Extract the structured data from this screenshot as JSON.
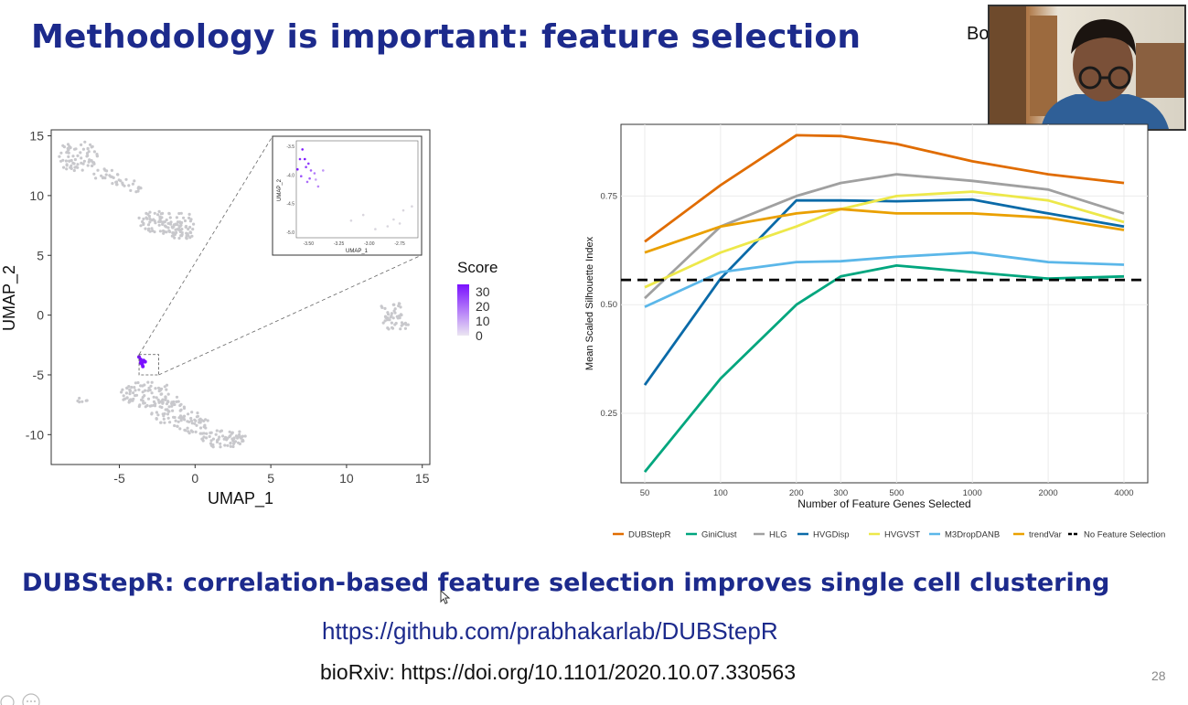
{
  "slide": {
    "title": "Methodology is important: feature selection",
    "presenter_label_fragment": "Bo",
    "subtitle": "DUBStepR: correlation-based feature selection improves single cell clustering",
    "link": "https://github.com/prabhakarlab/DUBStepR",
    "doi": "bioRxiv: https://doi.org/10.1101/2020.10.07.330563",
    "page_number": "28"
  },
  "chart_data": [
    {
      "type": "scatter",
      "xlabel": "UMAP_1",
      "ylabel": "UMAP_2",
      "xlim": [
        -9.5,
        15.5
      ],
      "ylim": [
        -12.5,
        15.5
      ],
      "x_ticks": [
        "-5",
        "0",
        "5",
        "10",
        "15"
      ],
      "y_ticks": [
        "15",
        "10",
        "5",
        "0",
        "-5",
        "-10"
      ],
      "legend": {
        "title": "Score",
        "labels": [
          "30",
          "20",
          "10",
          "0"
        ],
        "position": "right"
      },
      "colors": {
        "background_points": "#c8c8cc",
        "high_score": "#7a10ff",
        "low_score": "#ebe6f2"
      },
      "clusters": [
        {
          "cx": -7.8,
          "cy": 13.3,
          "rx": 1.4,
          "ry": 1.3,
          "n": 70
        },
        {
          "cx": -6.0,
          "cy": 11.8,
          "rx": 0.9,
          "ry": 0.5,
          "n": 18
        },
        {
          "cx": -4.8,
          "cy": 11.1,
          "rx": 1.0,
          "ry": 0.3,
          "n": 14
        },
        {
          "cx": -3.8,
          "cy": 10.6,
          "rx": 0.6,
          "ry": 0.3,
          "n": 8
        },
        {
          "cx": -2.5,
          "cy": 7.8,
          "rx": 1.4,
          "ry": 0.9,
          "n": 55
        },
        {
          "cx": -1.2,
          "cy": 7.6,
          "rx": 1.2,
          "ry": 1.2,
          "n": 50
        },
        {
          "cx": -0.6,
          "cy": 6.9,
          "rx": 0.7,
          "ry": 0.5,
          "n": 15
        },
        {
          "cx": -3.2,
          "cy": -6.5,
          "rx": 1.8,
          "ry": 1.2,
          "n": 80
        },
        {
          "cx": -1.8,
          "cy": -7.9,
          "rx": 1.2,
          "ry": 1.3,
          "n": 55
        },
        {
          "cx": -0.3,
          "cy": -9.0,
          "rx": 1.2,
          "ry": 0.9,
          "n": 45
        },
        {
          "cx": 1.8,
          "cy": -10.3,
          "rx": 1.7,
          "ry": 0.8,
          "n": 70
        },
        {
          "cx": 13.0,
          "cy": 0.4,
          "rx": 0.8,
          "ry": 0.8,
          "n": 28
        },
        {
          "cx": 13.3,
          "cy": -0.8,
          "rx": 0.9,
          "ry": 0.6,
          "n": 22
        },
        {
          "cx": -7.5,
          "cy": -7.1,
          "rx": 0.4,
          "ry": 0.2,
          "n": 6
        }
      ],
      "highlight_points": [
        [
          -3.6,
          -3.7
        ],
        [
          -3.5,
          -3.9
        ],
        [
          -3.4,
          -3.8
        ],
        [
          -3.6,
          -4.0
        ],
        [
          -3.5,
          -4.1
        ],
        [
          -3.7,
          -3.5
        ],
        [
          -3.3,
          -3.9
        ],
        [
          -3.45,
          -4.3
        ]
      ],
      "inset": {
        "xlabel": "UMAP_1",
        "ylabel": "UMAP_2",
        "x_ticks": [
          "-3.50",
          "-3.25",
          "-3.00",
          "-2.75"
        ],
        "y_ticks": [
          "-3.5",
          "-4.0",
          "-4.5",
          "-5.0"
        ],
        "xlim": [
          -3.6,
          -2.6
        ],
        "ylim": [
          -5.1,
          -3.4
        ],
        "points": [
          [
            -3.55,
            -3.55,
            30
          ],
          [
            -3.57,
            -3.72,
            28
          ],
          [
            -3.53,
            -3.72,
            32
          ],
          [
            -3.5,
            -3.8,
            26
          ],
          [
            -3.59,
            -3.9,
            30
          ],
          [
            -3.52,
            -3.86,
            24
          ],
          [
            -3.48,
            -3.92,
            20
          ],
          [
            -3.45,
            -3.97,
            16
          ],
          [
            -3.56,
            -4.02,
            22
          ],
          [
            -3.51,
            -4.12,
            18
          ],
          [
            -3.42,
            -4.2,
            14
          ],
          [
            -3.49,
            -4.06,
            20
          ],
          [
            -3.38,
            -3.92,
            12
          ],
          [
            -3.44,
            -4.08,
            10
          ],
          [
            -3.15,
            -4.8,
            1
          ],
          [
            -2.95,
            -4.95,
            1
          ],
          [
            -2.8,
            -4.78,
            1
          ],
          [
            -2.75,
            -4.85,
            1
          ],
          [
            -2.72,
            -4.62,
            1
          ],
          [
            -2.65,
            -4.55,
            1
          ],
          [
            -3.05,
            -4.7,
            1
          ],
          [
            -2.85,
            -4.9,
            1
          ]
        ]
      },
      "zoom_box": {
        "x": [
          -3.7,
          -2.4
        ],
        "y": [
          -5.0,
          -3.3
        ]
      }
    },
    {
      "type": "line",
      "xlabel": "Number of Feature Genes Selected",
      "ylabel": "Mean Scaled Silhouette Index",
      "x_scale": "log",
      "x": [
        50,
        100,
        200,
        300,
        500,
        1000,
        2000,
        4000
      ],
      "x_tick_labels": [
        "50",
        "100",
        "200",
        "300",
        "500",
        "1000",
        "2000",
        "4000"
      ],
      "ylim": [
        0.09,
        0.915
      ],
      "y_ticks": [
        0.25,
        0.5,
        0.75
      ],
      "y_tick_labels": [
        "0.25",
        "0.50",
        "0.75"
      ],
      "grid": true,
      "legend_position": "bottom",
      "series": [
        {
          "name": "DUBStepR",
          "color": "#e06c00",
          "values": [
            0.645,
            0.775,
            0.89,
            0.888,
            0.87,
            0.83,
            0.8,
            0.78
          ]
        },
        {
          "name": "GiniClust",
          "color": "#00a67e",
          "values": [
            0.115,
            0.33,
            0.5,
            0.565,
            0.59,
            0.575,
            0.56,
            0.565
          ]
        },
        {
          "name": "HLG",
          "color": "#a0a0a0",
          "values": [
            0.515,
            0.68,
            0.75,
            0.78,
            0.8,
            0.785,
            0.765,
            0.71
          ]
        },
        {
          "name": "HVGDisp",
          "color": "#0a6aa8",
          "values": [
            0.315,
            0.56,
            0.74,
            0.74,
            0.738,
            0.742,
            0.71,
            0.68
          ]
        },
        {
          "name": "HVGVST",
          "color": "#ede84a",
          "values": [
            0.54,
            0.62,
            0.68,
            0.72,
            0.75,
            0.76,
            0.74,
            0.69
          ]
        },
        {
          "name": "M3DropDANB",
          "color": "#5bb7e9",
          "values": [
            0.495,
            0.575,
            0.598,
            0.6,
            0.61,
            0.62,
            0.598,
            0.592
          ]
        },
        {
          "name": "trendVar",
          "color": "#eaa000",
          "values": [
            0.62,
            0.68,
            0.71,
            0.72,
            0.71,
            0.71,
            0.7,
            0.672
          ]
        }
      ],
      "reference": {
        "name": "No Feature Selection",
        "color": "#000000",
        "value": 0.557,
        "dashed": true
      }
    }
  ]
}
